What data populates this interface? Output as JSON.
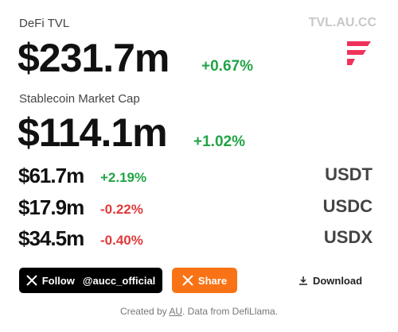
{
  "header": {
    "title": "DeFi TVL",
    "site": "TVL.AU.CC"
  },
  "tvl": {
    "value": "$231.7m",
    "change": "+0.67%"
  },
  "stablecoins": {
    "label": "Stablecoin Market Cap",
    "value": "$114.1m",
    "change": "+1.02%",
    "rows": [
      [
        "$61.7m",
        "+2.19%",
        "USDT"
      ],
      [
        "$17.9m",
        "-0.22%",
        "USDC"
      ],
      [
        "$34.5m",
        "-0.40%",
        "USDX"
      ]
    ]
  },
  "buttons": {
    "follow": "Follow",
    "handle": "@aucc_official",
    "share": "Share",
    "download": "Download"
  },
  "footer": {
    "prefix": "Created by",
    "author": "AU",
    "suffix": ". Data from DefiLlama."
  }
}
